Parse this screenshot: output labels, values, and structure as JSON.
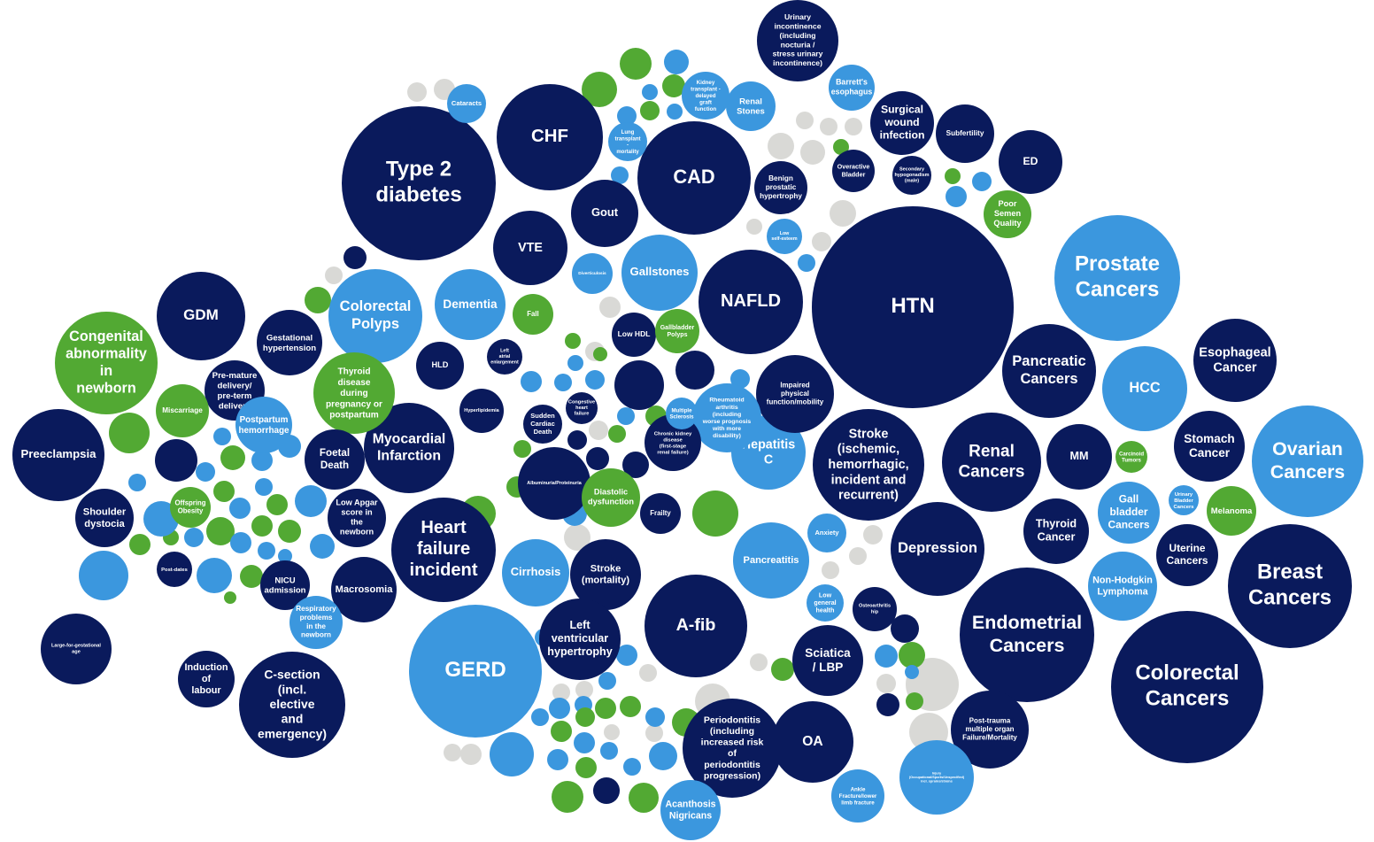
{
  "nodes": [
    {
      "label": "Type 2 diabetes",
      "color": "#0a1a5c"
    },
    {
      "label": "CHF",
      "color": "#0a1a5c"
    },
    {
      "label": "CAD",
      "color": "#0a1a5c"
    },
    {
      "label": "Gout",
      "color": "#0a1a5c"
    },
    {
      "label": "VTE",
      "color": "#0a1a5c"
    },
    {
      "label": "HTN",
      "color": "#0a1a5c"
    },
    {
      "label": "NAFLD",
      "color": "#0a1a5c"
    },
    {
      "label": "Prostate Cancers",
      "color": "#3b97de"
    },
    {
      "label": "GDM",
      "color": "#0a1a5c"
    },
    {
      "label": "Congenital abnormality in newborn",
      "color": "#52a933"
    },
    {
      "label": "Colorectal Polyps",
      "color": "#3b97de"
    },
    {
      "label": "Dementia",
      "color": "#3b97de"
    },
    {
      "label": "Gallstones",
      "color": "#3b97de"
    },
    {
      "label": "HLD",
      "color": "#0a1a5c"
    },
    {
      "label": "Myocardial Infarction",
      "color": "#0a1a5c"
    },
    {
      "label": "Heart failure incident",
      "color": "#0a1a5c"
    },
    {
      "label": "GERD",
      "color": "#3b97de"
    },
    {
      "label": "A-fib",
      "color": "#0a1a5c"
    },
    {
      "label": "OA",
      "color": "#0a1a5c"
    },
    {
      "label": "Sciatica / LBP",
      "color": "#0a1a5c"
    },
    {
      "label": "Stroke (ischemic, hemorrhagic, incident and recurrent)",
      "color": "#0a1a5c"
    },
    {
      "label": "Depression",
      "color": "#0a1a5c"
    },
    {
      "label": "Endometrial Cancers",
      "color": "#0a1a5c"
    },
    {
      "label": "Colorectal Cancers",
      "color": "#0a1a5c"
    },
    {
      "label": "Breast Cancers",
      "color": "#0a1a5c"
    },
    {
      "label": "Ovarian Cancers",
      "color": "#3b97de"
    },
    {
      "label": "HCC",
      "color": "#3b97de"
    },
    {
      "label": "Pancreatic Cancers",
      "color": "#0a1a5c"
    },
    {
      "label": "Renal Cancers",
      "color": "#0a1a5c"
    },
    {
      "label": "MM",
      "color": "#0a1a5c"
    },
    {
      "label": "Esophageal Cancer",
      "color": "#0a1a5c"
    },
    {
      "label": "Stomach Cancer",
      "color": "#0a1a5c"
    },
    {
      "label": "Thyroid Cancer",
      "color": "#0a1a5c"
    },
    {
      "label": "Gall bladder Cancers",
      "color": "#3b97de"
    },
    {
      "label": "Uterine Cancers",
      "color": "#0a1a5c"
    },
    {
      "label": "Non-Hodgkin Lymphoma",
      "color": "#3b97de"
    },
    {
      "label": "Melanoma",
      "color": "#52a933"
    },
    {
      "label": "Urinary Bladder Cancers",
      "color": "#3b97de"
    },
    {
      "label": "Carcinoid Tumors",
      "color": "#52a933"
    },
    {
      "label": "ED",
      "color": "#0a1a5c"
    },
    {
      "label": "Subfertility",
      "color": "#0a1a5c"
    },
    {
      "label": "Surgical wound infection",
      "color": "#0a1a5c"
    },
    {
      "label": "Urinary incontinence (including nocturia / stress urinary incontinence)",
      "color": "#0a1a5c"
    },
    {
      "label": "Barrett's esophagus",
      "color": "#3b97de"
    },
    {
      "label": "Renal Stones",
      "color": "#3b97de"
    },
    {
      "label": "Kidney transplant - delayed graft function",
      "color": "#3b97de"
    },
    {
      "label": "Cataracts",
      "color": "#3b97de"
    },
    {
      "label": "Preeclampsia",
      "color": "#0a1a5c"
    },
    {
      "label": "Shoulder dystocia",
      "color": "#0a1a5c"
    },
    {
      "label": "Large-for-gestational age",
      "color": "#0a1a5c"
    },
    {
      "label": "C-section (incl. elective and emergency)",
      "color": "#0a1a5c"
    },
    {
      "label": "Induction of labour",
      "color": "#0a1a5c"
    },
    {
      "label": "Pre-mature delivery/ pre-term delivery",
      "color": "#0a1a5c"
    },
    {
      "label": "Gestational hypertension",
      "color": "#0a1a5c"
    },
    {
      "label": "Thyroid disease during pregnancy or postpartum",
      "color": "#52a933"
    },
    {
      "label": "Foetal Death",
      "color": "#0a1a5c"
    },
    {
      "label": "Low Apgar score in the newborn",
      "color": "#0a1a5c"
    },
    {
      "label": "Macrosomia",
      "color": "#0a1a5c"
    },
    {
      "label": "Miscarriage",
      "color": "#52a933"
    },
    {
      "label": "Postpartum hemorrhage",
      "color": "#3b97de"
    },
    {
      "label": "Hepatitis C",
      "color": "#3b97de"
    },
    {
      "label": "Pancreatitis",
      "color": "#3b97de"
    },
    {
      "label": "Impaired physical function/mobility",
      "color": "#0a1a5c"
    },
    {
      "label": "Rheumatoid arthritis (including worse prognosis with more disability)",
      "color": "#3b97de"
    },
    {
      "label": "Periodontitis (including increased risk of periodontitis progression)",
      "color": "#0a1a5c"
    },
    {
      "label": "Post-trauma multiple organ Failure/Mortality",
      "color": "#0a1a5c"
    },
    {
      "label": "Injury (Occupational/Sports/Unspecified) incl. sprains/strains",
      "color": "#3b97de"
    },
    {
      "label": "Ankle Fracture/lower limb fracture",
      "color": "#3b97de"
    },
    {
      "label": "Acanthosis Nigricans",
      "color": "#3b97de"
    },
    {
      "label": "Albuminuria/Proteinuria",
      "color": "#0a1a5c"
    },
    {
      "label": "Chronic kidney disease (first-stage renal failure)",
      "color": "#0a1a5c"
    },
    {
      "label": "Stroke (mortality)",
      "color": "#0a1a5c"
    },
    {
      "label": "Cirrhosis",
      "color": "#3b97de"
    },
    {
      "label": "Left ventricular hypertrophy",
      "color": "#0a1a5c"
    },
    {
      "label": "Diastolic dysfunction",
      "color": "#52a933"
    },
    {
      "label": "Frailty",
      "color": "#0a1a5c"
    },
    {
      "label": "Fall",
      "color": "#52a933"
    },
    {
      "label": "Low HDL",
      "color": "#0a1a5c"
    },
    {
      "label": "Gallbladder Polyps",
      "color": "#52a933"
    },
    {
      "label": "Multiple Sclerosis",
      "color": "#3b97de"
    },
    {
      "label": "Hyperlipidemia",
      "color": "#0a1a5c"
    },
    {
      "label": "Benign prostatic hypertrophy",
      "color": "#0a1a5c"
    },
    {
      "label": "Low self-esteem",
      "color": "#3b97de"
    },
    {
      "label": "Overactive Bladder",
      "color": "#0a1a5c"
    },
    {
      "label": "Secondary hypogonadism (male)",
      "color": "#0a1a5c"
    },
    {
      "label": "Poor Semen Quality",
      "color": "#52a933"
    },
    {
      "label": "Anxiety",
      "color": "#3b97de"
    },
    {
      "label": "Low general health",
      "color": "#3b97de"
    },
    {
      "label": "Osteoarthritis hip",
      "color": "#0a1a5c"
    },
    {
      "label": "Sudden Cardiac Death",
      "color": "#0a1a5c"
    },
    {
      "label": "Diverticulosis",
      "color": "#3b97de"
    },
    {
      "label": "Left atrial enlargement",
      "color": "#0a1a5c"
    },
    {
      "label": "Offspring Obesity",
      "color": "#52a933"
    },
    {
      "label": "NICU admission",
      "color": "#0a1a5c"
    },
    {
      "label": "Respiratory problems in the newborn",
      "color": "#3b97de"
    },
    {
      "label": "Post-dates",
      "color": "#0a1a5c"
    },
    {
      "label": "Lung transplant - mortality",
      "color": "#3b97de"
    },
    {
      "label": "Congestive heart failure",
      "color": "#0a1a5c"
    }
  ]
}
